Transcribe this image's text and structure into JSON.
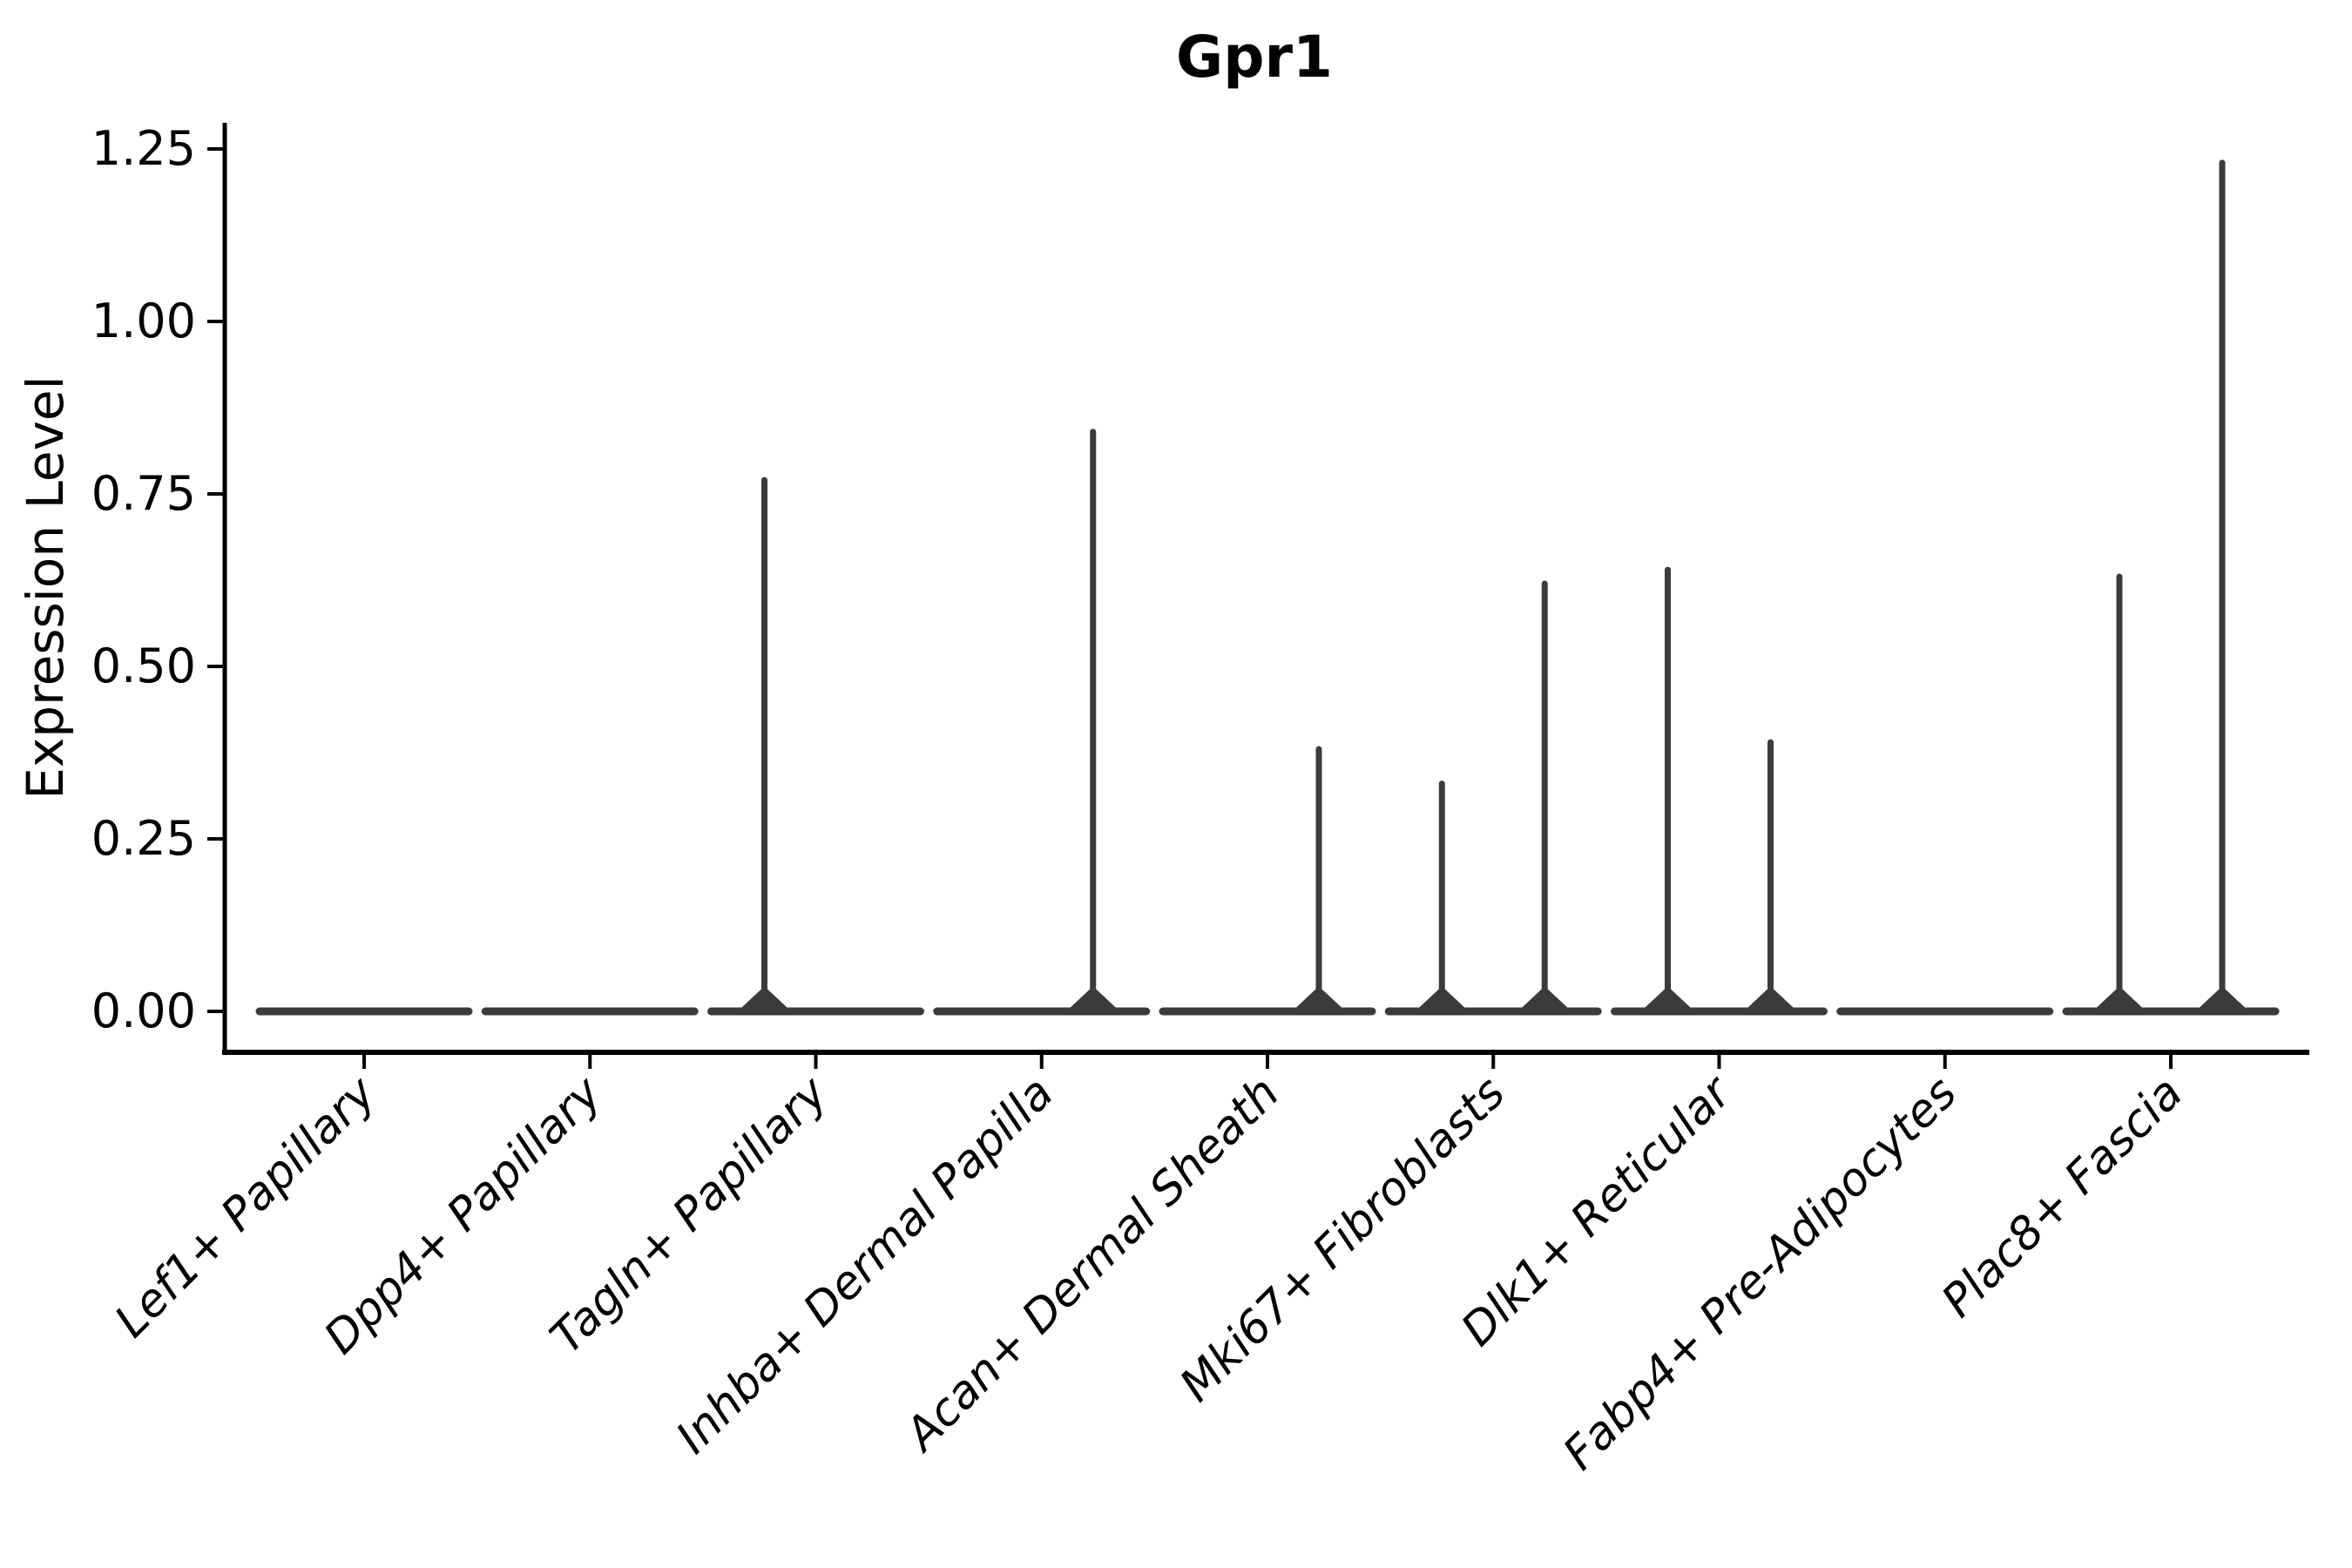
{
  "title": "Gpr1",
  "chart_data": {
    "type": "violin",
    "title": "Gpr1",
    "xlabel": "",
    "ylabel": "Expression Level",
    "ylim": [
      -0.06,
      1.29
    ],
    "yticks": [
      0.0,
      0.25,
      0.5,
      0.75,
      1.0,
      1.25
    ],
    "ytick_labels": [
      "0.00",
      "0.25",
      "0.50",
      "0.75",
      "1.00",
      "1.25"
    ],
    "grid": false,
    "legend": false,
    "x_label_rotation": 45,
    "categories": [
      "Lef1+ Papillary",
      "Dpp4+ Papillary",
      "Tagln+ Papillary",
      "Inhba+ Dermal Papilla",
      "Acan+ Dermal Sheath",
      "Mki67+ Fibroblasts",
      "Dlk1+ Reticular",
      "Fabp4+ Pre-Adipocytes",
      "Plac8+ Fascia"
    ],
    "violins": [
      {
        "category": "Lef1+ Papillary",
        "baseline_value": 0,
        "spikes": []
      },
      {
        "category": "Dpp4+ Papillary",
        "baseline_value": 0,
        "spikes": []
      },
      {
        "category": "Tagln+ Papillary",
        "baseline_value": 0,
        "spikes": [
          {
            "side": "left",
            "value": 0.77
          }
        ]
      },
      {
        "category": "Inhba+ Dermal Papilla",
        "baseline_value": 0,
        "spikes": [
          {
            "side": "right",
            "value": 0.84
          }
        ]
      },
      {
        "category": "Acan+ Dermal Sheath",
        "baseline_value": 0,
        "spikes": [
          {
            "side": "right",
            "value": 0.38
          }
        ]
      },
      {
        "category": "Mki67+ Fibroblasts",
        "baseline_value": 0,
        "spikes": [
          {
            "side": "left",
            "value": 0.33
          },
          {
            "side": "right",
            "value": 0.62
          }
        ]
      },
      {
        "category": "Dlk1+ Reticular",
        "baseline_value": 0,
        "spikes": [
          {
            "side": "left",
            "value": 0.64
          },
          {
            "side": "right",
            "value": 0.39
          }
        ]
      },
      {
        "category": "Fabp4+ Pre-Adipocytes",
        "baseline_value": 0,
        "spikes": []
      },
      {
        "category": "Plac8+ Fascia",
        "baseline_value": 0,
        "spikes": [
          {
            "side": "left",
            "value": 0.63
          },
          {
            "side": "right",
            "value": 1.23
          }
        ]
      }
    ],
    "colors": {
      "ink": "#000000",
      "violin": "#3b3b3b",
      "background": "#ffffff"
    }
  }
}
